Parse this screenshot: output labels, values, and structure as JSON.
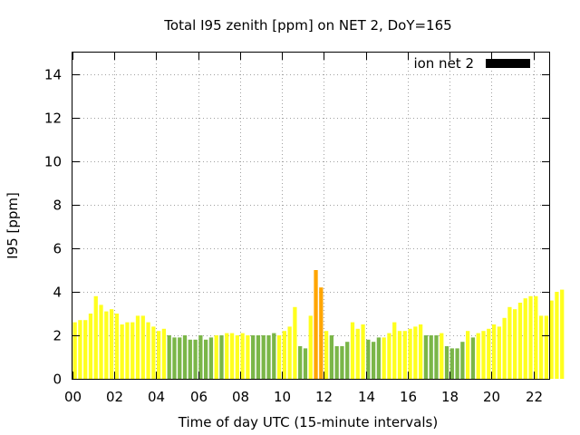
{
  "chart_data": {
    "type": "bar",
    "title": "Total I95 zenith [ppm] on NET 2, DoY=165",
    "xlabel": "Time of day UTC (15-minute intervals)",
    "ylabel": "I95 [ppm]",
    "ylim": [
      0,
      15
    ],
    "yticks": [
      0,
      2,
      4,
      6,
      8,
      10,
      12,
      14
    ],
    "xlim_hours": [
      0,
      22.75
    ],
    "xticks": [
      {
        "hour": 0,
        "label": "00"
      },
      {
        "hour": 2,
        "label": "02"
      },
      {
        "hour": 4,
        "label": "04"
      },
      {
        "hour": 6,
        "label": "06"
      },
      {
        "hour": 8,
        "label": "08"
      },
      {
        "hour": 10,
        "label": "10"
      },
      {
        "hour": 12,
        "label": "12"
      },
      {
        "hour": 14,
        "label": "14"
      },
      {
        "hour": 16,
        "label": "16"
      },
      {
        "hour": 18,
        "label": "18"
      },
      {
        "hour": 20,
        "label": "20"
      },
      {
        "hour": 22,
        "label": "22"
      }
    ],
    "grid": true,
    "legend": {
      "label": "ion net 2",
      "color": "#000000",
      "placement": "top-right"
    },
    "colors": {
      "green": "#7ab648",
      "yellow": "#ffff1e",
      "orange": "#ffa500"
    },
    "interval_hours": 0.25,
    "values": [
      2.6,
      2.7,
      2.7,
      3.0,
      3.8,
      3.4,
      3.1,
      3.2,
      3.0,
      2.5,
      2.6,
      2.6,
      2.9,
      2.9,
      2.6,
      2.4,
      2.2,
      2.3,
      2.0,
      1.9,
      1.9,
      2.0,
      1.8,
      1.8,
      2.0,
      1.8,
      1.9,
      2.0,
      2.0,
      2.1,
      2.1,
      2.0,
      2.1,
      2.0,
      2.0,
      2.0,
      2.0,
      2.0,
      2.1,
      2.0,
      2.2,
      2.4,
      3.3,
      1.5,
      1.4,
      2.9,
      5.0,
      4.2,
      2.2,
      2.0,
      1.5,
      1.5,
      1.7,
      2.6,
      2.3,
      2.5,
      1.8,
      1.7,
      1.9,
      1.9,
      2.1,
      2.6,
      2.2,
      2.2,
      2.3,
      2.4,
      2.5,
      2.0,
      2.0,
      2.0,
      2.1,
      1.5,
      1.4,
      1.4,
      1.7,
      2.2,
      1.9,
      2.1,
      2.2,
      2.3,
      2.5,
      2.4,
      2.8,
      3.3,
      3.2,
      3.5,
      3.7,
      3.8,
      3.8,
      2.9,
      2.9,
      3.6,
      4.0,
      4.1
    ],
    "bar_colors": [
      "yellow",
      "yellow",
      "yellow",
      "yellow",
      "yellow",
      "yellow",
      "yellow",
      "yellow",
      "yellow",
      "yellow",
      "yellow",
      "yellow",
      "yellow",
      "yellow",
      "yellow",
      "yellow",
      "yellow",
      "yellow",
      "green",
      "green",
      "green",
      "green",
      "green",
      "green",
      "green",
      "green",
      "green",
      "yellow",
      "green",
      "yellow",
      "yellow",
      "yellow",
      "yellow",
      "yellow",
      "green",
      "green",
      "green",
      "green",
      "green",
      "yellow",
      "yellow",
      "yellow",
      "yellow",
      "green",
      "green",
      "yellow",
      "orange",
      "orange",
      "yellow",
      "green",
      "green",
      "green",
      "green",
      "yellow",
      "yellow",
      "yellow",
      "green",
      "green",
      "green",
      "yellow",
      "yellow",
      "yellow",
      "yellow",
      "yellow",
      "yellow",
      "yellow",
      "yellow",
      "green",
      "green",
      "green",
      "yellow",
      "green",
      "green",
      "green",
      "green",
      "yellow",
      "green",
      "yellow",
      "yellow",
      "yellow",
      "yellow",
      "yellow",
      "yellow",
      "yellow",
      "yellow",
      "yellow",
      "yellow",
      "yellow",
      "yellow",
      "yellow",
      "yellow",
      "yellow",
      "yellow",
      "yellow"
    ]
  }
}
